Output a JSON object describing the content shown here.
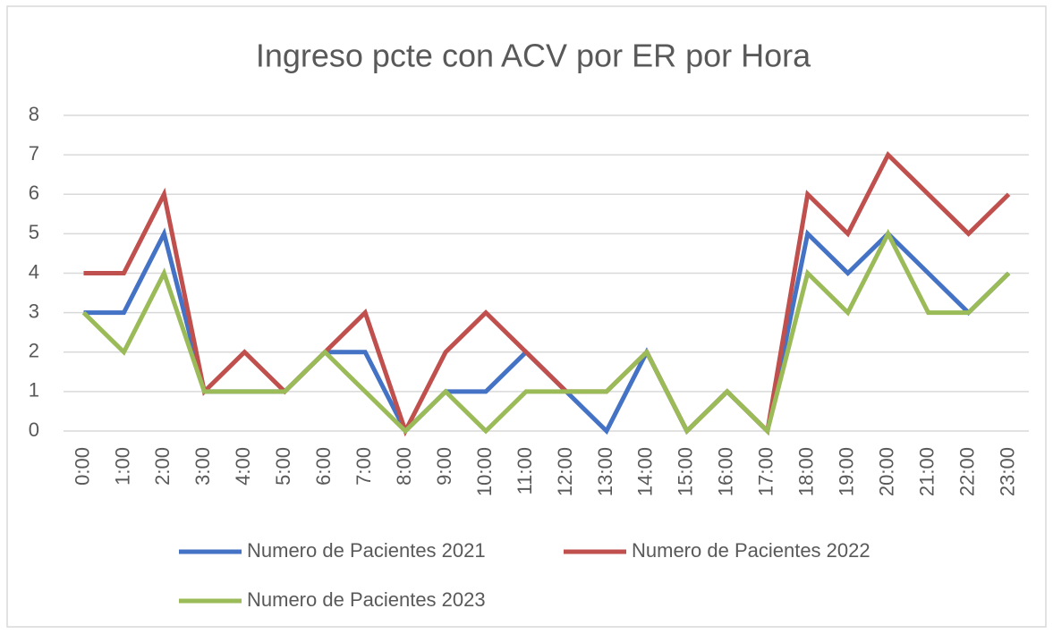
{
  "chart_data": {
    "type": "line",
    "title": "Ingreso pcte con ACV por ER por Hora",
    "categories": [
      "0:00",
      "1:00",
      "2:00",
      "3:00",
      "4:00",
      "5:00",
      "6:00",
      "7:00",
      "8:00",
      "9:00",
      "10:00",
      "11:00",
      "12:00",
      "13:00",
      "14:00",
      "15:00",
      "16:00",
      "17:00",
      "18:00",
      "19:00",
      "20:00",
      "21:00",
      "22:00",
      "23:00"
    ],
    "series": [
      {
        "name": "Numero de Pacientes 2021",
        "color": "#4472c4",
        "values": [
          3,
          3,
          5,
          1,
          1,
          1,
          2,
          2,
          0,
          1,
          1,
          2,
          1,
          0,
          2,
          0,
          1,
          0,
          5,
          4,
          5,
          4,
          3,
          4
        ]
      },
      {
        "name": "Numero de Pacientes 2022",
        "color": "#c0504d",
        "values": [
          4,
          4,
          6,
          1,
          2,
          1,
          2,
          3,
          0,
          2,
          3,
          2,
          1,
          1,
          2,
          0,
          1,
          0,
          6,
          5,
          7,
          6,
          5,
          6
        ]
      },
      {
        "name": "Numero de Pacientes 2023",
        "color": "#9bbb59",
        "values": [
          3,
          2,
          4,
          1,
          1,
          1,
          2,
          1,
          0,
          1,
          0,
          1,
          1,
          1,
          2,
          0,
          1,
          0,
          4,
          3,
          5,
          3,
          3,
          4
        ]
      }
    ],
    "ylim": [
      0,
      8
    ],
    "yticks": [
      0,
      1,
      2,
      3,
      4,
      5,
      6,
      7,
      8
    ],
    "grid": true,
    "legend": "bottom"
  }
}
